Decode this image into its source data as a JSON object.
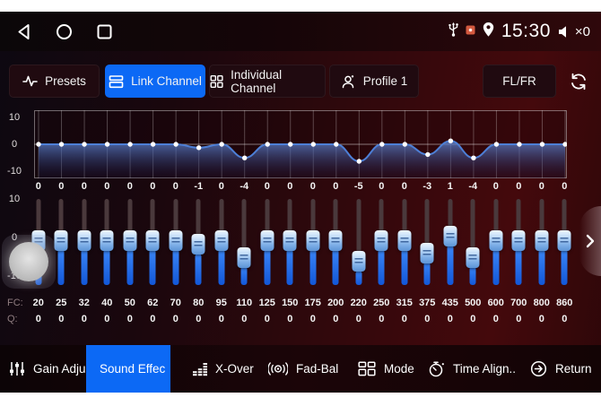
{
  "status_bar": {
    "time": "15:30",
    "volume": "×0"
  },
  "toolbar": {
    "buttons": [
      {
        "label": "Presets",
        "active": false
      },
      {
        "label": "Link Channel",
        "active": true
      },
      {
        "label": "Individual Channel",
        "active": false
      },
      {
        "label": "Profile 1",
        "active": false
      }
    ],
    "channel_label": "FL/FR"
  },
  "equalizer": {
    "graph_axis": [
      "10",
      "0",
      "-10"
    ],
    "slider_axis": [
      "10",
      "0",
      "-10"
    ],
    "fc_label": "FC:",
    "q_label": "Q:",
    "gain_range": [
      -10,
      10
    ],
    "accent_blue": "#1f6fe8",
    "curve_color": "#4d7fd6",
    "bands": [
      {
        "fc": "20",
        "gain": 0,
        "q": "0"
      },
      {
        "fc": "25",
        "gain": 0,
        "q": "0"
      },
      {
        "fc": "32",
        "gain": 0,
        "q": "0"
      },
      {
        "fc": "40",
        "gain": 0,
        "q": "0"
      },
      {
        "fc": "50",
        "gain": 0,
        "q": "0"
      },
      {
        "fc": "62",
        "gain": 0,
        "q": "0"
      },
      {
        "fc": "70",
        "gain": 0,
        "q": "0"
      },
      {
        "fc": "80",
        "gain": -1,
        "q": "0"
      },
      {
        "fc": "95",
        "gain": 0,
        "q": "0"
      },
      {
        "fc": "110",
        "gain": -4,
        "q": "0"
      },
      {
        "fc": "125",
        "gain": 0,
        "q": "0"
      },
      {
        "fc": "150",
        "gain": 0,
        "q": "0"
      },
      {
        "fc": "175",
        "gain": 0,
        "q": "0"
      },
      {
        "fc": "200",
        "gain": 0,
        "q": "0"
      },
      {
        "fc": "220",
        "gain": -5,
        "q": "0"
      },
      {
        "fc": "250",
        "gain": 0,
        "q": "0"
      },
      {
        "fc": "315",
        "gain": 0,
        "q": "0"
      },
      {
        "fc": "375",
        "gain": -3,
        "q": "0"
      },
      {
        "fc": "435",
        "gain": 1,
        "q": "0"
      },
      {
        "fc": "500",
        "gain": -4,
        "q": "0"
      },
      {
        "fc": "600",
        "gain": 0,
        "q": "0"
      },
      {
        "fc": "700",
        "gain": 0,
        "q": "0"
      },
      {
        "fc": "800",
        "gain": 0,
        "q": "0"
      },
      {
        "fc": "860",
        "gain": 0,
        "q": "0"
      }
    ]
  },
  "bottom_nav": {
    "items": [
      {
        "label": "Gain Adjus..",
        "active": false
      },
      {
        "label": "Sound Effec",
        "active": true
      },
      {
        "label": "X-Over",
        "active": false
      },
      {
        "label": "Fad-Bal",
        "active": false
      },
      {
        "label": "Mode",
        "active": false
      },
      {
        "label": "Time Align..",
        "active": false
      },
      {
        "label": "Return",
        "active": false
      }
    ]
  }
}
